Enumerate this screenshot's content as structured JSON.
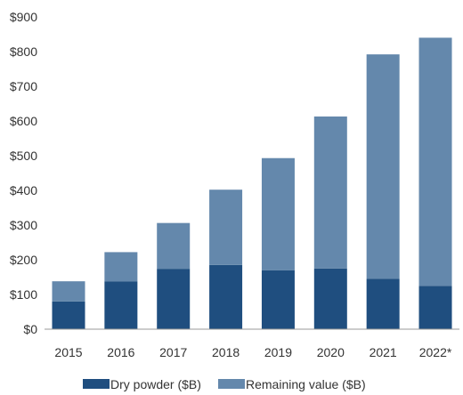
{
  "chart_data": {
    "type": "bar",
    "stacked": true,
    "categories": [
      "2015",
      "2016",
      "2017",
      "2018",
      "2019",
      "2020",
      "2021",
      "2022*"
    ],
    "series": [
      {
        "name": "Dry powder ($B)",
        "color": "#1f4e7f",
        "values": [
          80,
          138,
          174,
          185,
          170,
          175,
          145,
          125
        ]
      },
      {
        "name": "Remaining value ($B)",
        "color": "#6488ac",
        "values": [
          58,
          84,
          132,
          217,
          323,
          438,
          647,
          715
        ]
      }
    ],
    "yticks": [
      "$0",
      "$100",
      "$200",
      "$300",
      "$400",
      "$500",
      "$600",
      "$700",
      "$800",
      "$900"
    ],
    "ylim": [
      0,
      900
    ],
    "grid": false,
    "legend_position": "bottom"
  }
}
